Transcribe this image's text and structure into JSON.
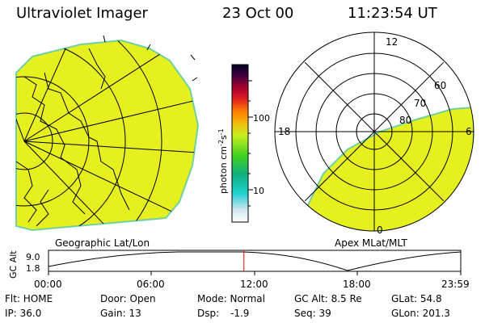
{
  "header": {
    "title": "Ultraviolet Imager",
    "date": "23 Oct 00",
    "time": "11:23:54 UT"
  },
  "panels": {
    "geo_label": "Geographic Lat/Lon",
    "apex_label": "Apex MLat/MLT",
    "polar_mlt_labels": [
      "12",
      "18",
      "6",
      "0"
    ],
    "polar_lat_labels": [
      "60",
      "70",
      "80"
    ]
  },
  "colorbar": {
    "unit_label": "photon cm",
    "unit_exp1": "-2",
    "unit_mid": "s",
    "unit_exp2": "-1",
    "ticks": [
      "100",
      "10"
    ]
  },
  "altitude_plot": {
    "ylabel": "GC Alt",
    "yticks": [
      "9.0",
      "1.8"
    ],
    "xticks": [
      "00:00",
      "06:00",
      "12:00",
      "18:00",
      "23:59"
    ],
    "current_time_fraction": 0.474
  },
  "info": {
    "row1": {
      "flt": "Flt: HOME",
      "door": "Door: Open",
      "mode": "Mode: Normal",
      "gcalt": "GC Alt: 8.5 Re",
      "glat": "GLat: 54.8"
    },
    "row2": {
      "ip": "IP: 36.0",
      "gain": "Gain: 13",
      "dsp_label": "Dsp:",
      "dsp_value": "-1.9",
      "seq": "Seq: 39",
      "glon": "GLon: 201.3"
    }
  },
  "colors": {
    "image_fill": "#e6f01e",
    "image_edge": "#6fd0a0",
    "marker": "#ff0000"
  }
}
